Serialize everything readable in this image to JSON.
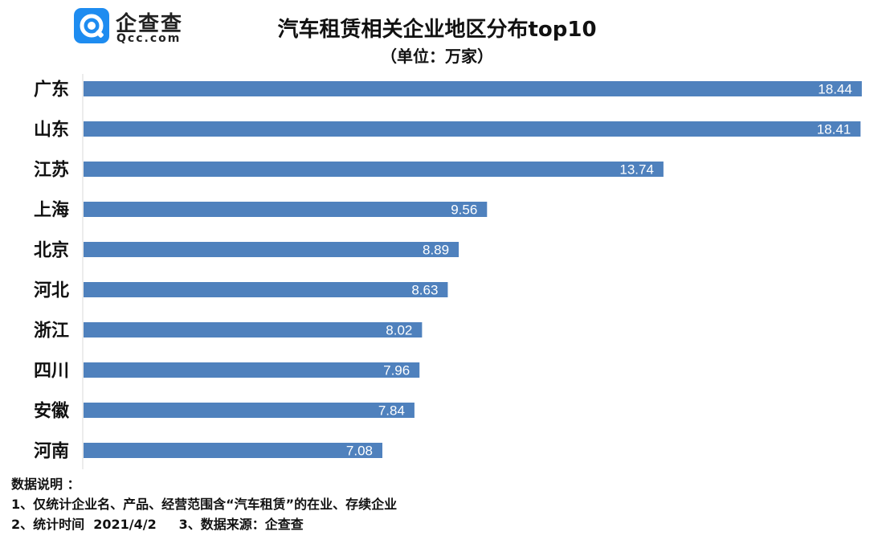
{
  "logo": {
    "name": "企查查",
    "sub": "Qcc.com",
    "brand_color": "#1e8cf0"
  },
  "chart_data": {
    "type": "bar",
    "orientation": "horizontal",
    "title": "汽车租赁相关企业地区分布top10",
    "subtitle": "（单位：万家）",
    "categories": [
      "广东",
      "山东",
      "江苏",
      "上海",
      "北京",
      "河北",
      "浙江",
      "四川",
      "安徽",
      "河南"
    ],
    "values": [
      18.44,
      18.41,
      13.74,
      9.56,
      8.89,
      8.63,
      8.02,
      7.96,
      7.84,
      7.08
    ],
    "value_labels": [
      "18.44",
      "18.41",
      "13.74",
      "9.56",
      "8.89",
      "8.63",
      "8.02",
      "7.96",
      "7.84",
      "7.08"
    ],
    "xlim": [
      0,
      18.5
    ],
    "grid": false,
    "bar_color": "#4f81bd",
    "label_color": "#ffffff"
  },
  "notes": {
    "heading": "数据说明 ：",
    "line1": "1、仅统计企业名、产品、经营范围含“汽车租赁”的在业、存续企业",
    "line2": "2、统计时间  2021/4/2     3、数据来源：企查查"
  }
}
